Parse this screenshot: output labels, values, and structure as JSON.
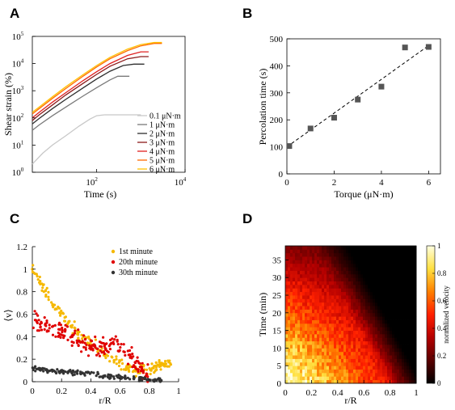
{
  "chart_data": [
    {
      "panel": "A",
      "type": "line",
      "xlabel": "Time (s)",
      "ylabel": "Shear strain (%)",
      "x_scale": "log",
      "y_scale": "log",
      "xlim": [
        3.5,
        10000
      ],
      "ylim": [
        1,
        100000
      ],
      "x_ticks": [
        {
          "value": 100,
          "base": "10",
          "exp": "2"
        },
        {
          "value": 10000,
          "base": "10",
          "exp": "4"
        }
      ],
      "y_ticks": [
        {
          "value": 1,
          "base": "10",
          "exp": "0"
        },
        {
          "value": 10,
          "base": "10",
          "exp": "1"
        },
        {
          "value": 100,
          "base": "10",
          "exp": "2"
        },
        {
          "value": 1000,
          "base": "10",
          "exp": "3"
        },
        {
          "value": 10000,
          "base": "10",
          "exp": "4"
        },
        {
          "value": 100000,
          "base": "10",
          "exp": "5"
        }
      ],
      "legend_position": "bottom-right",
      "series": [
        {
          "name": "0.1 μN·m",
          "color": "#c8c8c8",
          "x": [
            3.5,
            6,
            10,
            20,
            40,
            70,
            100,
            150,
            1000
          ],
          "y": [
            2,
            5,
            10,
            22,
            50,
            90,
            120,
            130,
            130
          ]
        },
        {
          "name": "1 μN·m",
          "color": "#7a7a7a",
          "x": [
            3.5,
            5,
            10,
            20,
            50,
            100,
            200,
            300,
            550
          ],
          "y": [
            35,
            55,
            120,
            250,
            650,
            1300,
            2500,
            3400,
            3400
          ]
        },
        {
          "name": "2 μN·m",
          "color": "#2e2e2e",
          "x": [
            3.5,
            5,
            10,
            20,
            50,
            100,
            200,
            400,
            700,
            1200
          ],
          "y": [
            60,
            95,
            220,
            480,
            1300,
            2700,
            5200,
            8500,
            9500,
            9500
          ]
        },
        {
          "name": "3 μN·m",
          "color": "#8b1a1a",
          "x": [
            3.5,
            5,
            10,
            20,
            50,
            100,
            200,
            500,
            1000,
            1500
          ],
          "y": [
            80,
            130,
            300,
            700,
            1900,
            4000,
            8000,
            15000,
            18000,
            18000
          ]
        },
        {
          "name": "4 μN·m",
          "color": "#e02020",
          "x": [
            3.5,
            5,
            10,
            20,
            50,
            100,
            200,
            500,
            1000,
            1500
          ],
          "y": [
            100,
            160,
            380,
            850,
            2400,
            5000,
            10000,
            20000,
            27000,
            27000
          ]
        },
        {
          "name": "5 μN·m",
          "color": "#ff6a00",
          "x": [
            3.5,
            5,
            10,
            20,
            50,
            100,
            200,
            500,
            1000,
            2000,
            3000
          ],
          "y": [
            140,
            220,
            520,
            1200,
            3500,
            7500,
            15000,
            30000,
            45000,
            55000,
            55000
          ]
        },
        {
          "name": "6 μN·m",
          "color": "#ffc000",
          "x": [
            3.5,
            5,
            10,
            20,
            50,
            100,
            200,
            500,
            1000,
            2000,
            3000
          ],
          "y": [
            160,
            250,
            600,
            1400,
            4000,
            8500,
            17000,
            34000,
            50000,
            60000,
            60000
          ]
        }
      ]
    },
    {
      "panel": "B",
      "type": "scatter",
      "xlabel": "Torque (μN·m)",
      "ylabel": "Percolation time (s)",
      "xlim": [
        0,
        6.5
      ],
      "ylim": [
        0,
        500
      ],
      "x_ticks": [
        0,
        2,
        4,
        6
      ],
      "y_ticks": [
        0,
        100,
        200,
        300,
        400,
        500
      ],
      "marker_color": "#555555",
      "points": {
        "x": [
          0.1,
          1,
          2,
          3,
          4,
          5,
          6
        ],
        "y": [
          103,
          168,
          208,
          275,
          323,
          468,
          470
        ]
      },
      "fit_line": {
        "x": [
          0,
          6
        ],
        "y": [
          100,
          475
        ]
      }
    },
    {
      "panel": "C",
      "type": "scatter",
      "xlabel": "r/R",
      "ylabel": "⟨v⟩",
      "xlim": [
        0,
        1
      ],
      "ylim": [
        0,
        1.2
      ],
      "x_ticks": [
        "0",
        "0.2",
        "0.4",
        "0.6",
        "0.8",
        "1"
      ],
      "y_ticks": [
        "0",
        "0.2",
        "0.4",
        "0.6",
        "0.8",
        "1",
        "1.2"
      ],
      "legend_position": "top-right",
      "series": [
        {
          "name": "1st minute",
          "color": "#f5b800",
          "profile": {
            "x": [
              0,
              0.02,
              0.05,
              0.1,
              0.15,
              0.2,
              0.25,
              0.3,
              0.35,
              0.4,
              0.45,
              0.5,
              0.55,
              0.6,
              0.65,
              0.7,
              0.75,
              0.8,
              0.85,
              0.9,
              0.95
            ],
            "y": [
              1.0,
              0.95,
              0.88,
              0.78,
              0.68,
              0.6,
              0.52,
              0.45,
              0.38,
              0.33,
              0.3,
              0.25,
              0.22,
              0.18,
              0.13,
              0.1,
              0.1,
              0.12,
              0.14,
              0.15,
              0.15
            ]
          },
          "spread": 0.04,
          "count": 200
        },
        {
          "name": "20th minute",
          "color": "#e00000",
          "profile": {
            "x": [
              0,
              0.05,
              0.1,
              0.15,
              0.2,
              0.25,
              0.3,
              0.35,
              0.4,
              0.45,
              0.5,
              0.55,
              0.6,
              0.65,
              0.7,
              0.75,
              0.8
            ],
            "y": [
              0.52,
              0.53,
              0.5,
              0.47,
              0.45,
              0.42,
              0.38,
              0.34,
              0.32,
              0.3,
              0.3,
              0.32,
              0.3,
              0.25,
              0.18,
              0.1,
              0.05
            ]
          },
          "spread": 0.06,
          "count": 200
        },
        {
          "name": "30th minute",
          "color": "#333333",
          "profile": {
            "x": [
              0,
              0.1,
              0.2,
              0.3,
              0.4,
              0.5,
              0.6,
              0.7,
              0.8,
              0.9
            ],
            "y": [
              0.11,
              0.1,
              0.09,
              0.08,
              0.07,
              0.05,
              0.04,
              0.03,
              0.02,
              0.01
            ]
          },
          "spread": 0.015,
          "count": 160
        }
      ]
    },
    {
      "panel": "D",
      "type": "heatmap",
      "xlabel": "r/R",
      "ylabel": "Time (min)",
      "colorbar_label": "normalized velocity",
      "xlim": [
        0,
        1
      ],
      "ylim": [
        0,
        39
      ],
      "x_ticks": [
        "0",
        "0.2",
        "0.4",
        "0.6",
        "0.8",
        "1"
      ],
      "y_ticks": [
        "0",
        "5",
        "10",
        "15",
        "20",
        "25",
        "30",
        "35"
      ],
      "colorbar_ticks": [
        "0",
        "0.2",
        "0.4",
        "0.6",
        "0.8",
        "1"
      ],
      "colormap": [
        "#000000",
        "#5a0000",
        "#b40000",
        "#ff2000",
        "#ff8000",
        "#ffe040",
        "#ffffe0"
      ]
    }
  ],
  "panels": {
    "A": "A",
    "B": "B",
    "C": "C",
    "D": "D"
  }
}
